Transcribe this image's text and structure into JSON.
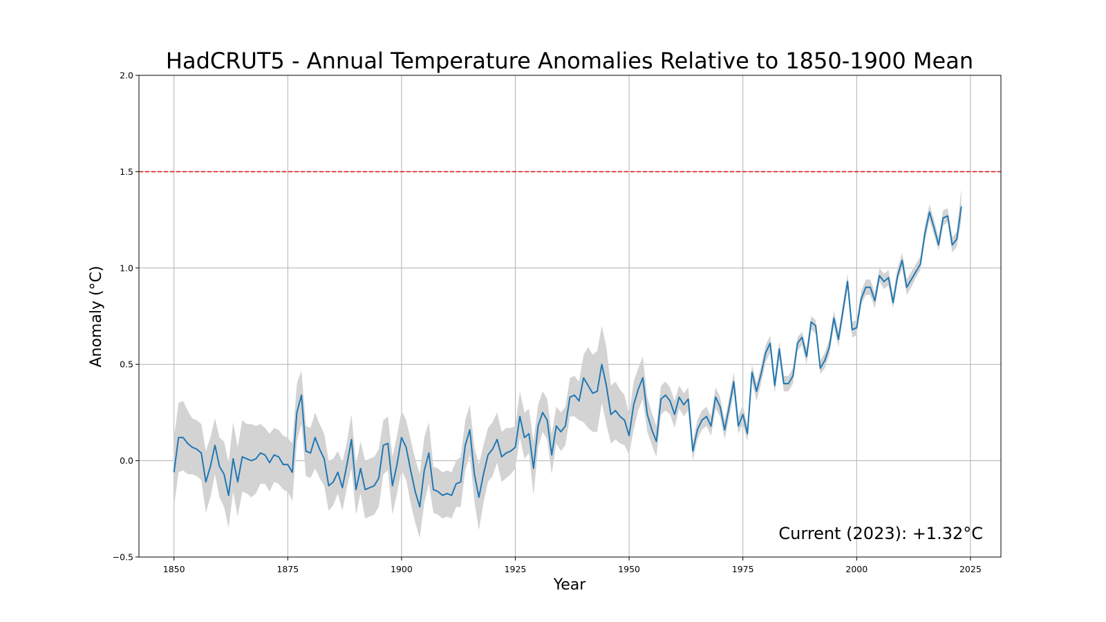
{
  "chart_data": {
    "type": "line",
    "title": "HadCRUT5 - Annual Temperature Anomalies Relative to 1850-1900 Mean",
    "xlabel": "Year",
    "ylabel": "Anomaly (°C)",
    "xlim": [
      1842.3,
      2031.7
    ],
    "ylim": [
      -0.5,
      2.0
    ],
    "xticks": [
      1850,
      1875,
      1900,
      1925,
      1950,
      1975,
      2000,
      2025
    ],
    "yticks": [
      -0.5,
      0.0,
      0.5,
      1.0,
      1.5,
      2.0
    ],
    "grid": true,
    "x_start": 1850,
    "series": [
      {
        "values": [
          -0.06,
          0.12,
          0.12,
          0.09,
          0.07,
          0.06,
          0.04,
          -0.11,
          -0.03,
          0.08,
          -0.03,
          -0.07,
          -0.18,
          0.01,
          -0.11,
          0.02,
          0.01,
          0.0,
          0.01,
          0.04,
          0.03,
          -0.01,
          0.03,
          0.02,
          -0.02,
          -0.02,
          -0.06,
          0.25,
          0.34,
          0.05,
          0.04,
          0.12,
          0.06,
          0.01,
          -0.13,
          -0.11,
          -0.06,
          -0.14,
          -0.02,
          0.11,
          -0.15,
          -0.04,
          -0.15,
          -0.14,
          -0.13,
          -0.09,
          0.08,
          0.09,
          -0.13,
          -0.02,
          0.12,
          0.07,
          -0.05,
          -0.16,
          -0.24,
          -0.05,
          0.04,
          -0.15,
          -0.16,
          -0.18,
          -0.17,
          -0.18,
          -0.12,
          -0.11,
          0.08,
          0.16,
          -0.07,
          -0.19,
          -0.07,
          0.03,
          0.06,
          0.11,
          0.02,
          0.04,
          0.05,
          0.07,
          0.23,
          0.12,
          0.14,
          -0.04,
          0.18,
          0.25,
          0.21,
          0.03,
          0.18,
          0.15,
          0.18,
          0.33,
          0.34,
          0.31,
          0.43,
          0.39,
          0.35,
          0.36,
          0.5,
          0.39,
          0.24,
          0.26,
          0.23,
          0.21,
          0.13,
          0.29,
          0.37,
          0.43,
          0.24,
          0.16,
          0.1,
          0.32,
          0.34,
          0.31,
          0.24,
          0.33,
          0.29,
          0.32,
          0.05,
          0.16,
          0.21,
          0.23,
          0.18,
          0.33,
          0.28,
          0.16,
          0.28,
          0.41,
          0.18,
          0.24,
          0.14,
          0.46,
          0.36,
          0.45,
          0.56,
          0.61,
          0.39,
          0.58,
          0.4,
          0.4,
          0.44,
          0.61,
          0.64,
          0.54,
          0.72,
          0.7,
          0.48,
          0.52,
          0.59,
          0.74,
          0.63,
          0.78,
          0.93,
          0.68,
          0.69,
          0.84,
          0.9,
          0.9,
          0.83,
          0.96,
          0.93,
          0.95,
          0.82,
          0.96,
          1.04,
          0.9,
          0.94,
          0.98,
          1.02,
          1.18,
          1.29,
          1.21,
          1.12,
          1.26,
          1.27,
          1.12,
          1.15,
          1.32
        ],
        "lower": [
          -0.24,
          -0.06,
          -0.05,
          -0.07,
          -0.07,
          -0.08,
          -0.1,
          -0.27,
          -0.19,
          -0.07,
          -0.19,
          -0.24,
          -0.35,
          -0.16,
          -0.29,
          -0.16,
          -0.17,
          -0.19,
          -0.17,
          -0.12,
          -0.12,
          -0.16,
          -0.11,
          -0.12,
          -0.15,
          -0.16,
          -0.21,
          0.1,
          0.19,
          -0.08,
          -0.09,
          -0.04,
          -0.09,
          -0.13,
          -0.26,
          -0.23,
          -0.17,
          -0.26,
          -0.14,
          -0.04,
          -0.28,
          -0.17,
          -0.3,
          -0.29,
          -0.28,
          -0.24,
          -0.07,
          -0.05,
          -0.28,
          -0.17,
          -0.05,
          -0.1,
          -0.22,
          -0.32,
          -0.4,
          -0.22,
          -0.12,
          -0.27,
          -0.28,
          -0.3,
          -0.29,
          -0.3,
          -0.24,
          -0.24,
          -0.05,
          0.03,
          -0.21,
          -0.36,
          -0.22,
          -0.11,
          -0.08,
          -0.01,
          -0.11,
          -0.09,
          -0.07,
          -0.04,
          0.12,
          0.01,
          0.04,
          -0.18,
          0.07,
          0.15,
          0.11,
          -0.07,
          0.09,
          0.05,
          0.08,
          0.23,
          0.23,
          0.21,
          0.2,
          0.17,
          0.15,
          0.15,
          0.3,
          0.19,
          0.09,
          0.11,
          0.09,
          0.08,
          0.03,
          0.16,
          0.26,
          0.32,
          0.15,
          0.08,
          0.02,
          0.24,
          0.26,
          0.24,
          0.17,
          0.27,
          0.23,
          0.26,
          0.0,
          0.11,
          0.16,
          0.18,
          0.13,
          0.27,
          0.23,
          0.11,
          0.23,
          0.35,
          0.14,
          0.19,
          0.1,
          0.41,
          0.31,
          0.4,
          0.51,
          0.56,
          0.35,
          0.53,
          0.36,
          0.36,
          0.4,
          0.57,
          0.6,
          0.5,
          0.68,
          0.66,
          0.45,
          0.48,
          0.55,
          0.7,
          0.59,
          0.74,
          0.89,
          0.64,
          0.65,
          0.81,
          0.86,
          0.86,
          0.79,
          0.93,
          0.89,
          0.91,
          0.79,
          0.93,
          1.0,
          0.86,
          0.9,
          0.95,
          0.99,
          1.14,
          1.25,
          1.17,
          1.09,
          1.22,
          1.24,
          1.08,
          1.11,
          1.25
        ],
        "upper": [
          0.12,
          0.3,
          0.31,
          0.26,
          0.22,
          0.21,
          0.19,
          0.05,
          0.12,
          0.22,
          0.12,
          0.1,
          -0.01,
          0.2,
          0.07,
          0.21,
          0.19,
          0.19,
          0.18,
          0.19,
          0.17,
          0.14,
          0.17,
          0.16,
          0.13,
          0.12,
          0.09,
          0.4,
          0.47,
          0.18,
          0.17,
          0.25,
          0.19,
          0.14,
          0.0,
          0.01,
          0.05,
          -0.01,
          0.1,
          0.24,
          -0.02,
          0.1,
          0.0,
          0.01,
          0.02,
          0.06,
          0.21,
          0.23,
          0.02,
          0.13,
          0.26,
          0.21,
          0.11,
          0.01,
          -0.07,
          0.12,
          0.2,
          -0.03,
          -0.04,
          -0.06,
          -0.05,
          -0.06,
          0.0,
          0.02,
          0.21,
          0.29,
          0.07,
          -0.02,
          0.08,
          0.17,
          0.2,
          0.25,
          0.15,
          0.17,
          0.17,
          0.18,
          0.36,
          0.25,
          0.27,
          0.1,
          0.29,
          0.36,
          0.32,
          0.14,
          0.28,
          0.25,
          0.28,
          0.43,
          0.44,
          0.41,
          0.55,
          0.59,
          0.55,
          0.57,
          0.7,
          0.59,
          0.39,
          0.41,
          0.37,
          0.34,
          0.24,
          0.41,
          0.48,
          0.54,
          0.33,
          0.25,
          0.18,
          0.39,
          0.41,
          0.38,
          0.31,
          0.39,
          0.35,
          0.38,
          0.1,
          0.21,
          0.26,
          0.28,
          0.23,
          0.38,
          0.33,
          0.21,
          0.33,
          0.46,
          0.23,
          0.29,
          0.18,
          0.5,
          0.4,
          0.49,
          0.6,
          0.65,
          0.43,
          0.62,
          0.44,
          0.44,
          0.48,
          0.64,
          0.67,
          0.58,
          0.75,
          0.73,
          0.52,
          0.56,
          0.63,
          0.78,
          0.67,
          0.82,
          0.97,
          0.72,
          0.73,
          0.88,
          0.94,
          0.94,
          0.87,
          1.0,
          0.97,
          0.99,
          0.86,
          1.0,
          1.08,
          0.94,
          0.98,
          1.02,
          1.06,
          1.22,
          1.33,
          1.25,
          1.16,
          1.3,
          1.31,
          1.16,
          1.19,
          1.41
        ]
      }
    ],
    "reference_lines": [
      {
        "y": 1.5,
        "color": "#e31a1c",
        "style": "dashed"
      }
    ],
    "annotation": "Current (2023): +1.32°C",
    "colors": {
      "line": "#1f77b4",
      "band": "#d3d3d3",
      "reference": "#e31a1c"
    }
  }
}
